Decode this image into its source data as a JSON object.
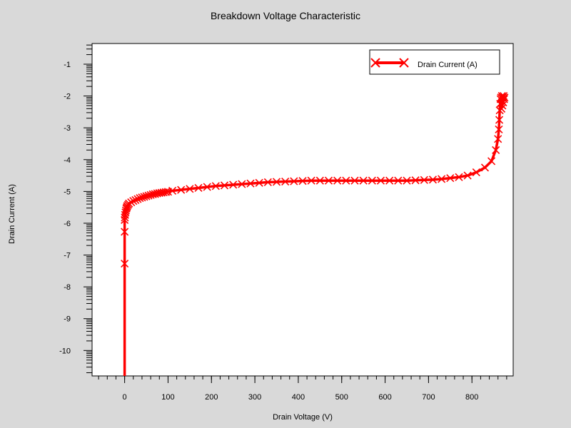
{
  "chart_data": {
    "type": "line",
    "title": "Breakdown Voltage Characteristic",
    "xlabel": "Drain Voltage (V)",
    "ylabel": "Drain Current (A)",
    "xlim": [
      -75,
      895
    ],
    "ylim": [
      -10.8,
      -0.35
    ],
    "y_scale": "log",
    "xticks": [
      0,
      100,
      200,
      300,
      400,
      500,
      600,
      700,
      800
    ],
    "yticks": [
      -1,
      -2,
      -3,
      -4,
      -5,
      -6,
      -7,
      -8,
      -9,
      -10
    ],
    "grid": false,
    "legend_position": "top-right",
    "series": [
      {
        "name": "Drain Current (A)",
        "color": "#ff0000",
        "marker": "x",
        "x": [
          0,
          0,
          0,
          0,
          0.5,
          1,
          2,
          3,
          4,
          5,
          6,
          8,
          10,
          15,
          20,
          25,
          30,
          35,
          40,
          45,
          50,
          55,
          60,
          65,
          70,
          75,
          80,
          85,
          90,
          95,
          100,
          110,
          130,
          150,
          170,
          190,
          210,
          230,
          250,
          270,
          290,
          310,
          330,
          350,
          370,
          390,
          410,
          430,
          450,
          470,
          490,
          510,
          530,
          550,
          570,
          590,
          610,
          630,
          650,
          670,
          690,
          710,
          730,
          750,
          770,
          790,
          810,
          830,
          845,
          855,
          860,
          862,
          863,
          864,
          865,
          866,
          867,
          868,
          869,
          870,
          871,
          872,
          873,
          874,
          875
        ],
        "y": [
          -10.8,
          -7.27,
          -6.27,
          -5.9,
          -5.82,
          -5.74,
          -5.66,
          -5.6,
          -5.54,
          -5.5,
          -5.46,
          -5.42,
          -5.38,
          -5.34,
          -5.3,
          -5.27,
          -5.24,
          -5.21,
          -5.19,
          -5.17,
          -5.15,
          -5.13,
          -5.11,
          -5.09,
          -5.08,
          -5.06,
          -5.05,
          -5.04,
          -5.03,
          -5.02,
          -5.01,
          -4.98,
          -4.95,
          -4.92,
          -4.89,
          -4.86,
          -4.83,
          -4.81,
          -4.79,
          -4.77,
          -4.75,
          -4.73,
          -4.71,
          -4.7,
          -4.69,
          -4.68,
          -4.67,
          -4.66,
          -4.66,
          -4.66,
          -4.66,
          -4.66,
          -4.66,
          -4.66,
          -4.66,
          -4.66,
          -4.66,
          -4.66,
          -4.66,
          -4.65,
          -4.64,
          -4.63,
          -4.61,
          -4.58,
          -4.55,
          -4.5,
          -4.4,
          -4.25,
          -4.05,
          -3.7,
          -3.35,
          -3.05,
          -2.75,
          -2.45,
          -2.25,
          -2.1,
          -2.05,
          -2.4,
          -2.0,
          -2.3,
          -2.05,
          -2.2,
          -2.0,
          -2.1,
          -2.05
        ]
      }
    ]
  }
}
